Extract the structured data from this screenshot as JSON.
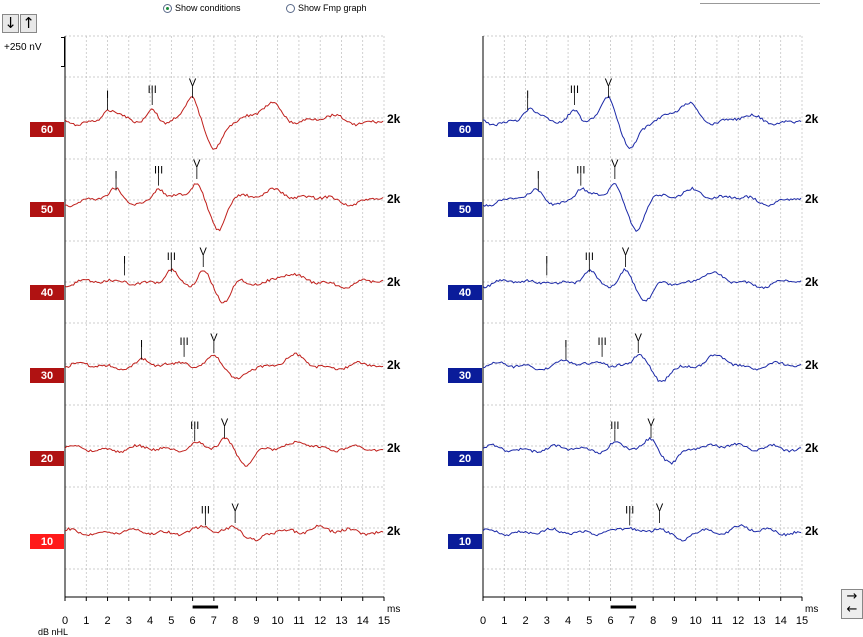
{
  "controls": {
    "show_conditions_label": "Show conditions",
    "show_fmp_label": "Show Fmp graph",
    "selected": "show_conditions"
  },
  "toolbar": {
    "down_arrow_glyph": "↓",
    "up_arrow_glyph": "↑",
    "scale_label": "+250 nV",
    "right_arrow_glyph": "→",
    "left_arrow_glyph": "←"
  },
  "colors": {
    "left_trace": "#c0201c",
    "right_trace": "#1c2aa8",
    "left_label_bg": "#b01212",
    "left_label_active_bg": "#ff1a1a",
    "right_label_bg": "#0a1c9a",
    "grid": "#bdbdbd"
  },
  "chart_data": [
    {
      "type": "line",
      "ear": "left",
      "xlabel": "ms",
      "ylabel": "dB nHL",
      "x_ticks": [
        "0",
        "1",
        "2",
        "3",
        "4",
        "5",
        "6",
        "7",
        "8",
        "9",
        "10",
        "11",
        "12",
        "13",
        "14",
        "15"
      ],
      "xlim": [
        0,
        15
      ],
      "stimulus_marker": [
        6,
        7.2
      ],
      "series": [
        {
          "level": "60",
          "rate": "2k",
          "peaks": [
            {
              "label": "I",
              "ms": 2.0
            },
            {
              "label": "III",
              "ms": 4.1
            },
            {
              "label": "V",
              "ms": 6.0
            }
          ]
        },
        {
          "level": "50",
          "rate": "2k",
          "peaks": [
            {
              "label": "I",
              "ms": 2.4
            },
            {
              "label": "III",
              "ms": 4.4
            },
            {
              "label": "V",
              "ms": 6.2
            }
          ]
        },
        {
          "level": "40",
          "rate": "2k",
          "peaks": [
            {
              "label": "I",
              "ms": 2.8
            },
            {
              "label": "III",
              "ms": 5.0
            },
            {
              "label": "V",
              "ms": 6.5
            }
          ]
        },
        {
          "level": "30",
          "rate": "2k",
          "peaks": [
            {
              "label": "I",
              "ms": 3.6
            },
            {
              "label": "III",
              "ms": 5.6
            },
            {
              "label": "V",
              "ms": 7.0
            }
          ]
        },
        {
          "level": "20",
          "rate": "2k",
          "peaks": [
            {
              "label": "III",
              "ms": 6.1
            },
            {
              "label": "V",
              "ms": 7.5
            }
          ]
        },
        {
          "level": "10",
          "rate": "2k",
          "peaks": [
            {
              "label": "III",
              "ms": 6.6
            },
            {
              "label": "V",
              "ms": 8.0
            }
          ]
        }
      ],
      "active_level": "10"
    },
    {
      "type": "line",
      "ear": "right",
      "xlabel": "ms",
      "x_ticks": [
        "0",
        "1",
        "2",
        "3",
        "4",
        "5",
        "6",
        "7",
        "8",
        "9",
        "10",
        "11",
        "12",
        "13",
        "14",
        "15"
      ],
      "xlim": [
        0,
        15
      ],
      "stimulus_marker": [
        6,
        7.2
      ],
      "series": [
        {
          "level": "60",
          "rate": "2k",
          "peaks": [
            {
              "label": "I",
              "ms": 2.1
            },
            {
              "label": "III",
              "ms": 4.3
            },
            {
              "label": "V",
              "ms": 5.9
            }
          ]
        },
        {
          "level": "50",
          "rate": "2k",
          "peaks": [
            {
              "label": "I",
              "ms": 2.6
            },
            {
              "label": "III",
              "ms": 4.6
            },
            {
              "label": "V",
              "ms": 6.2
            }
          ]
        },
        {
          "level": "40",
          "rate": "2k",
          "peaks": [
            {
              "label": "I",
              "ms": 3.0
            },
            {
              "label": "III",
              "ms": 5.0
            },
            {
              "label": "V",
              "ms": 6.7
            }
          ]
        },
        {
          "level": "30",
          "rate": "2k",
          "peaks": [
            {
              "label": "I",
              "ms": 3.9
            },
            {
              "label": "III",
              "ms": 5.6
            },
            {
              "label": "V",
              "ms": 7.3
            }
          ]
        },
        {
          "level": "20",
          "rate": "2k",
          "peaks": [
            {
              "label": "III",
              "ms": 6.2
            },
            {
              "label": "V",
              "ms": 7.9
            }
          ]
        },
        {
          "level": "10",
          "rate": "2k",
          "peaks": [
            {
              "label": "III",
              "ms": 6.9
            },
            {
              "label": "V",
              "ms": 8.3
            }
          ]
        }
      ]
    }
  ]
}
